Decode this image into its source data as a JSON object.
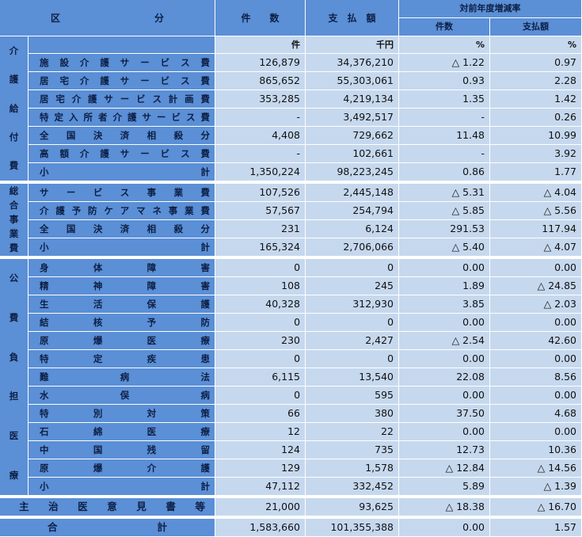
{
  "header": {
    "kubun": "区　　分",
    "kensu": "件　　数",
    "shiharai": "支　払　額",
    "rate_group": "対前年度増減率",
    "rate_kensu": "件数",
    "rate_shiharai": "支払額"
  },
  "units": {
    "kensu": "件",
    "shiharai": "千円",
    "rate_kensu": "%",
    "rate_shiharai": "%"
  },
  "sections": [
    {
      "label": "介護給付費",
      "chars": [
        "介",
        "護",
        "給",
        "付",
        "費"
      ],
      "rows": [
        {
          "label": "施設介護サービス費",
          "kensu": "126,879",
          "shiharai": "34,376,210",
          "rate_kensu": "△ 1.22",
          "rate_shiharai": "0.97"
        },
        {
          "label": "居宅介護サービス費",
          "kensu": "865,652",
          "shiharai": "55,303,061",
          "rate_kensu": "0.93",
          "rate_shiharai": "2.28"
        },
        {
          "label": "居宅介護サービス計画費",
          "kensu": "353,285",
          "shiharai": "4,219,134",
          "rate_kensu": "1.35",
          "rate_shiharai": "1.42"
        },
        {
          "label": "特定入所者介護サービス費",
          "kensu": "-",
          "shiharai": "3,492,517",
          "rate_kensu": "-",
          "rate_shiharai": "0.26"
        },
        {
          "label": "全国決済相殺分",
          "kensu": "4,408",
          "shiharai": "729,662",
          "rate_kensu": "11.48",
          "rate_shiharai": "10.99"
        },
        {
          "label": "高額介護サービス費",
          "kensu": "-",
          "shiharai": "102,661",
          "rate_kensu": "-",
          "rate_shiharai": "3.92"
        },
        {
          "label": "小　　　　　　　　　　　　計",
          "kensu": "1,350,224",
          "shiharai": "98,223,245",
          "rate_kensu": "0.86",
          "rate_shiharai": "1.77"
        }
      ]
    },
    {
      "label": "総合事業費",
      "chars": [
        "総",
        "合",
        "事",
        "業",
        "費"
      ],
      "rows": [
        {
          "label": "サービス事業費",
          "kensu": "107,526",
          "shiharai": "2,445,148",
          "rate_kensu": "△ 5.31",
          "rate_shiharai": "△ 4.04"
        },
        {
          "label": "介護予防ケアマネ事業費",
          "kensu": "57,567",
          "shiharai": "254,794",
          "rate_kensu": "△ 5.85",
          "rate_shiharai": "△ 5.56"
        },
        {
          "label": "全国決済相殺分",
          "kensu": "231",
          "shiharai": "6,124",
          "rate_kensu": "291.53",
          "rate_shiharai": "117.94"
        },
        {
          "label": "小　　　　　　　　　　　　計",
          "kensu": "165,324",
          "shiharai": "2,706,066",
          "rate_kensu": "△ 5.40",
          "rate_shiharai": "△ 4.07"
        }
      ]
    },
    {
      "label": "公費負担医療",
      "chars": [
        "公",
        "費",
        "負",
        "担",
        "医",
        "療"
      ],
      "rows": [
        {
          "label": "身体障害",
          "kensu": "0",
          "shiharai": "0",
          "rate_kensu": "0.00",
          "rate_shiharai": "0.00"
        },
        {
          "label": "精神障害",
          "kensu": "108",
          "shiharai": "245",
          "rate_kensu": "1.89",
          "rate_shiharai": "△ 24.85"
        },
        {
          "label": "生活保護",
          "kensu": "40,328",
          "shiharai": "312,930",
          "rate_kensu": "3.85",
          "rate_shiharai": "△ 2.03"
        },
        {
          "label": "結核予防",
          "kensu": "0",
          "shiharai": "0",
          "rate_kensu": "0.00",
          "rate_shiharai": "0.00"
        },
        {
          "label": "原爆医療",
          "kensu": "230",
          "shiharai": "2,427",
          "rate_kensu": "△ 2.54",
          "rate_shiharai": "42.60"
        },
        {
          "label": "特定疾患",
          "kensu": "0",
          "shiharai": "0",
          "rate_kensu": "0.00",
          "rate_shiharai": "0.00"
        },
        {
          "label": "難病法",
          "kensu": "6,115",
          "shiharai": "13,540",
          "rate_kensu": "22.08",
          "rate_shiharai": "8.56"
        },
        {
          "label": "水俣病",
          "kensu": "0",
          "shiharai": "595",
          "rate_kensu": "0.00",
          "rate_shiharai": "0.00"
        },
        {
          "label": "特別対策",
          "kensu": "66",
          "shiharai": "380",
          "rate_kensu": "37.50",
          "rate_shiharai": "4.68"
        },
        {
          "label": "石綿医療",
          "kensu": "12",
          "shiharai": "22",
          "rate_kensu": "0.00",
          "rate_shiharai": "0.00"
        },
        {
          "label": "中国残留",
          "kensu": "124",
          "shiharai": "735",
          "rate_kensu": "12.73",
          "rate_shiharai": "10.36"
        },
        {
          "label": "原爆介護",
          "kensu": "129",
          "shiharai": "1,578",
          "rate_kensu": "△ 12.84",
          "rate_shiharai": "△ 14.56"
        },
        {
          "label": "小　　　　　　　　　　　　計",
          "kensu": "47,112",
          "shiharai": "332,452",
          "rate_kensu": "5.89",
          "rate_shiharai": "△ 1.39"
        }
      ]
    }
  ],
  "shujii": {
    "label": "主治医意見書等",
    "kensu": "21,000",
    "shiharai": "93,625",
    "rate_kensu": "△ 18.38",
    "rate_shiharai": "△ 16.70"
  },
  "total": {
    "label": "合　　　　計",
    "kensu": "1,583,660",
    "shiharai": "101,355,388",
    "rate_kensu": "0.00",
    "rate_shiharai": "1.57"
  }
}
